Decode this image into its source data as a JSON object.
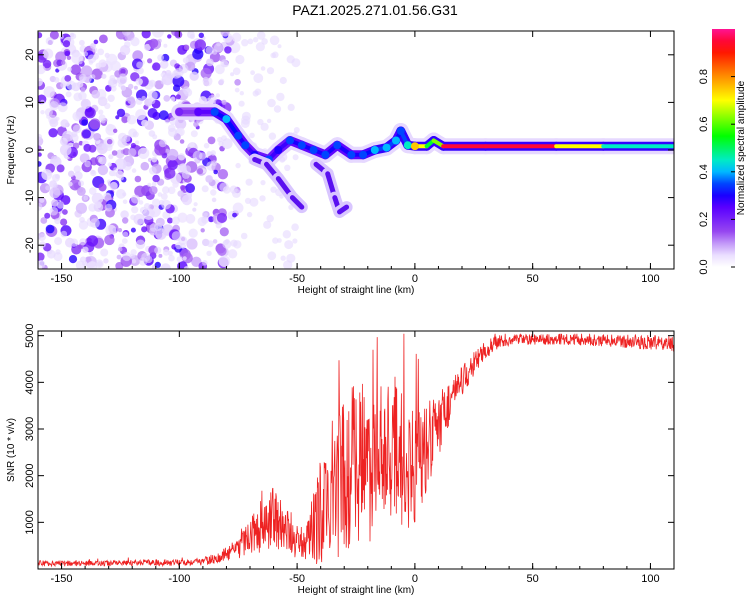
{
  "title": "PAZ1.2025.271.01.56.G31",
  "chart_data": [
    {
      "type": "heatmap",
      "title": "PAZ1.2025.271.01.56.G31",
      "xlabel": "Height of straight line (km)",
      "ylabel": "Frequency (Hz)",
      "xlim": [
        -160,
        110
      ],
      "ylim": [
        -25,
        25
      ],
      "xticks": [
        -150,
        -100,
        -50,
        0,
        50,
        100
      ],
      "yticks": [
        -20,
        -10,
        0,
        10,
        20
      ],
      "colorbar": {
        "label": "Normalized spectral amplitude",
        "range": [
          0,
          1
        ],
        "ticks": [
          0.0,
          0.2,
          0.4,
          0.6,
          0.8
        ],
        "tick_labels": [
          "0.0",
          "0.2",
          "0.4",
          "0.6",
          "0.8"
        ],
        "colors": [
          "#ffffff",
          "#e8d8ff",
          "#8a2be2",
          "#4b00ff",
          "#0000ff",
          "#00e5ff",
          "#00ff00",
          "#ffff00",
          "#ff7f00",
          "#ff0000",
          "#ff1493"
        ]
      },
      "ridge": [
        {
          "x": -100,
          "y": 8,
          "a": 0.15
        },
        {
          "x": -92,
          "y": 8,
          "a": 0.2
        },
        {
          "x": -85,
          "y": 8,
          "a": 0.3
        },
        {
          "x": -80,
          "y": 6.5,
          "a": 0.35
        },
        {
          "x": -75,
          "y": 3,
          "a": 0.3
        },
        {
          "x": -72,
          "y": 1,
          "a": 0.3
        },
        {
          "x": -68,
          "y": -1,
          "a": 0.25
        },
        {
          "x": -62,
          "y": -2,
          "a": 0.3
        },
        {
          "x": -58,
          "y": 0,
          "a": 0.25
        },
        {
          "x": -53,
          "y": 2,
          "a": 0.3
        },
        {
          "x": -48,
          "y": 1,
          "a": 0.3
        },
        {
          "x": -43,
          "y": 0,
          "a": 0.3
        },
        {
          "x": -38,
          "y": -1,
          "a": 0.3
        },
        {
          "x": -33,
          "y": 1,
          "a": 0.3
        },
        {
          "x": -27,
          "y": -1,
          "a": 0.3
        },
        {
          "x": -22,
          "y": -1,
          "a": 0.3
        },
        {
          "x": -17,
          "y": 0,
          "a": 0.35
        },
        {
          "x": -12,
          "y": 0.5,
          "a": 0.35
        },
        {
          "x": -8,
          "y": 2,
          "a": 0.35
        },
        {
          "x": -6,
          "y": 4,
          "a": 0.3
        },
        {
          "x": -3,
          "y": 1,
          "a": 0.4
        },
        {
          "x": 0,
          "y": 0.8,
          "a": 0.7
        },
        {
          "x": 5,
          "y": 0.8,
          "a": 0.7
        },
        {
          "x": 8,
          "y": 2,
          "a": 0.35
        },
        {
          "x": 12,
          "y": 0.8,
          "a": 0.9
        },
        {
          "x": 30,
          "y": 0.8,
          "a": 1.0
        },
        {
          "x": 60,
          "y": 0.8,
          "a": 0.9
        },
        {
          "x": 80,
          "y": 0.8,
          "a": 0.5
        },
        {
          "x": 110,
          "y": 0.8,
          "a": 0.4
        }
      ],
      "branches": [
        [
          {
            "x": -68,
            "y": -2
          },
          {
            "x": -63,
            "y": -3
          },
          {
            "x": -58,
            "y": -6
          },
          {
            "x": -52,
            "y": -10
          },
          {
            "x": -48,
            "y": -12
          }
        ],
        [
          {
            "x": -42,
            "y": -3
          },
          {
            "x": -37,
            "y": -5
          },
          {
            "x": -34,
            "y": -10
          },
          {
            "x": -32,
            "y": -13
          },
          {
            "x": -29,
            "y": -12
          }
        ]
      ]
    },
    {
      "type": "line",
      "xlabel": "Height of straight line (km)",
      "ylabel": "SNR (10 * v/v)",
      "xlim": [
        -160,
        110
      ],
      "ylim": [
        0,
        5100
      ],
      "xticks": [
        -150,
        -100,
        -50,
        0,
        50,
        100
      ],
      "yticks": [
        1000,
        2000,
        3000,
        4000,
        5000
      ],
      "series": [
        {
          "name": "SNR",
          "color": "#ee2222",
          "x": [
            -160,
            -140,
            -120,
            -100,
            -90,
            -85,
            -80,
            -75,
            -70,
            -65,
            -60,
            -55,
            -50,
            -45,
            -40,
            -35,
            -30,
            -25,
            -20,
            -15,
            -10,
            -5,
            0,
            5,
            10,
            15,
            20,
            25,
            30,
            35,
            40,
            50,
            60,
            70,
            80,
            90,
            100,
            110
          ],
          "mean": [
            120,
            120,
            130,
            140,
            160,
            220,
            320,
            450,
            700,
            950,
            1100,
            900,
            500,
            700,
            1200,
            1600,
            2000,
            2300,
            2200,
            2400,
            2600,
            2300,
            2100,
            2600,
            3100,
            3600,
            4000,
            4400,
            4700,
            4850,
            4900,
            4920,
            4930,
            4920,
            4900,
            4880,
            4850,
            4820
          ],
          "spread": [
            60,
            60,
            60,
            70,
            80,
            120,
            150,
            250,
            350,
            600,
            700,
            500,
            300,
            500,
            1200,
            1600,
            1800,
            1800,
            1700,
            1500,
            1500,
            1500,
            1300,
            1000,
            700,
            500,
            350,
            250,
            200,
            150,
            120,
            120,
            120,
            130,
            130,
            140,
            160,
            180
          ]
        }
      ]
    }
  ]
}
